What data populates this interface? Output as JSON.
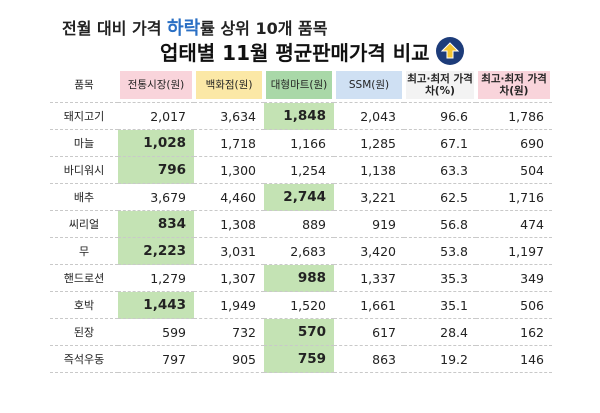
{
  "title": {
    "line1_pre": "전월 대비 가격 ",
    "line1_highlight": "하락",
    "line1_post": "률 상위 10개 품목",
    "line2": "업태별 11월 평균판매가격 비교"
  },
  "colors": {
    "highlight_text": "#2a6fc4",
    "lowest_cell": "#c4e3b4",
    "market_header": "#f9d4db",
    "dept_header": "#fbe8a6",
    "mart_header": "#a9d8a8",
    "ssm_header": "#cfe0f3"
  },
  "table": {
    "headers": {
      "item": "품목",
      "market": "전통시장(원)",
      "dept": "백화점(원)",
      "mart": "대형마트(원)",
      "ssm": "SSM(원)",
      "ratio": "최고·최저 가격차(%)",
      "diff": "최고·최저 가격차(원)"
    },
    "rows": [
      {
        "item": "돼지고기",
        "market": "2,017",
        "dept": "3,634",
        "mart": "1,848",
        "ssm": "2,043",
        "ratio": "96.6",
        "diff": "1,786",
        "lowest": "mart"
      },
      {
        "item": "마늘",
        "market": "1,028",
        "dept": "1,718",
        "mart": "1,166",
        "ssm": "1,285",
        "ratio": "67.1",
        "diff": "690",
        "lowest": "market"
      },
      {
        "item": "바디워시",
        "market": "796",
        "dept": "1,300",
        "mart": "1,254",
        "ssm": "1,138",
        "ratio": "63.3",
        "diff": "504",
        "lowest": "market"
      },
      {
        "item": "배추",
        "market": "3,679",
        "dept": "4,460",
        "mart": "2,744",
        "ssm": "3,221",
        "ratio": "62.5",
        "diff": "1,716",
        "lowest": "mart"
      },
      {
        "item": "씨리얼",
        "market": "834",
        "dept": "1,308",
        "mart": "889",
        "ssm": "919",
        "ratio": "56.8",
        "diff": "474",
        "lowest": "market"
      },
      {
        "item": "무",
        "market": "2,223",
        "dept": "3,031",
        "mart": "2,683",
        "ssm": "3,420",
        "ratio": "53.8",
        "diff": "1,197",
        "lowest": "market"
      },
      {
        "item": "핸드로션",
        "market": "1,279",
        "dept": "1,307",
        "mart": "988",
        "ssm": "1,337",
        "ratio": "35.3",
        "diff": "349",
        "lowest": "mart"
      },
      {
        "item": "호박",
        "market": "1,443",
        "dept": "1,949",
        "mart": "1,520",
        "ssm": "1,661",
        "ratio": "35.1",
        "diff": "506",
        "lowest": "market"
      },
      {
        "item": "된장",
        "market": "599",
        "dept": "732",
        "mart": "570",
        "ssm": "617",
        "ratio": "28.4",
        "diff": "162",
        "lowest": "mart"
      },
      {
        "item": "즉석우동",
        "market": "797",
        "dept": "905",
        "mart": "759",
        "ssm": "863",
        "ratio": "19.2",
        "diff": "146",
        "lowest": "mart"
      }
    ]
  }
}
